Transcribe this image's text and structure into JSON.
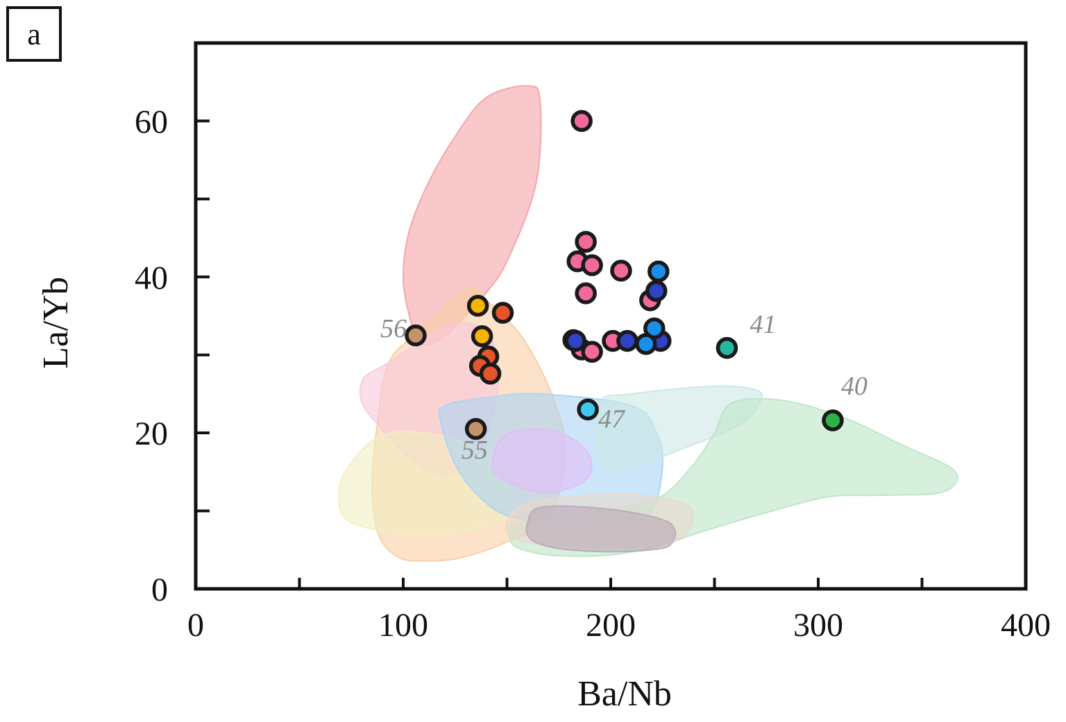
{
  "panel_label": "a",
  "chart_data": {
    "type": "scatter",
    "title": "",
    "xlabel": "Ba/Nb",
    "ylabel": "La/Yb",
    "xlim": [
      0,
      400
    ],
    "ylim": [
      0,
      70
    ],
    "xticks": [
      0,
      100,
      200,
      300,
      400
    ],
    "yticks": [
      0,
      20,
      40,
      60
    ],
    "x_minor_ticks": [
      50,
      150,
      250,
      350
    ],
    "y_minor_ticks": [
      10,
      30,
      50
    ],
    "grid": false,
    "fields": [
      {
        "name": "red-field",
        "color": "#f4a3a6",
        "points": [
          [
            100,
            40
          ],
          [
            103,
            46
          ],
          [
            112,
            52
          ],
          [
            125,
            58
          ],
          [
            140,
            63
          ],
          [
            160,
            64.5
          ],
          [
            166,
            62.5
          ],
          [
            164,
            52
          ],
          [
            150,
            42
          ],
          [
            140,
            38
          ],
          [
            130,
            35
          ],
          [
            118,
            32
          ],
          [
            108,
            31.5
          ],
          [
            103,
            35
          ]
        ]
      },
      {
        "name": "orange-field",
        "color": "#f8cfa5",
        "points": [
          [
            130,
            38.5
          ],
          [
            140,
            37
          ],
          [
            158,
            32
          ],
          [
            173,
            24
          ],
          [
            178,
            17
          ],
          [
            170,
            9
          ],
          [
            150,
            6
          ],
          [
            128,
            4
          ],
          [
            112,
            3.6
          ],
          [
            98,
            4
          ],
          [
            88,
            7
          ],
          [
            85,
            13
          ],
          [
            87,
            20
          ],
          [
            93,
            29
          ],
          [
            110,
            33.5
          ]
        ]
      },
      {
        "name": "pink-field",
        "color": "#f8c8dc",
        "points": [
          [
            93,
            29
          ],
          [
            110,
            32
          ],
          [
            125,
            34
          ],
          [
            140,
            33
          ],
          [
            146,
            27
          ],
          [
            138,
            18
          ],
          [
            126,
            15
          ],
          [
            117,
            14.5
          ],
          [
            102,
            17
          ],
          [
            88,
            21
          ],
          [
            80,
            24
          ],
          [
            81,
            27
          ]
        ]
      },
      {
        "name": "yellow-field",
        "color": "#f1efc0",
        "points": [
          [
            88,
            19.5
          ],
          [
            110,
            20
          ],
          [
            132,
            18.5
          ],
          [
            145,
            16
          ],
          [
            152,
            12
          ],
          [
            148,
            9
          ],
          [
            122,
            7
          ],
          [
            96,
            7.2
          ],
          [
            75,
            8.5
          ],
          [
            69,
            11
          ],
          [
            72,
            15
          ]
        ]
      },
      {
        "name": "blue-field",
        "color": "#abd4f4",
        "points": [
          [
            118,
            21.5
          ],
          [
            120,
            23.5
          ],
          [
            140,
            24.5
          ],
          [
            165,
            25
          ],
          [
            210,
            23.5
          ],
          [
            222,
            20
          ],
          [
            225,
            16
          ],
          [
            220,
            10
          ],
          [
            206,
            8.5
          ],
          [
            180,
            8.5
          ],
          [
            155,
            9
          ],
          [
            140,
            11
          ],
          [
            126,
            15.5
          ]
        ]
      },
      {
        "name": "teal-field",
        "color": "#cbe7e4",
        "points": [
          [
            195,
            24
          ],
          [
            210,
            25
          ],
          [
            250,
            26
          ],
          [
            270,
            25.5
          ],
          [
            272,
            24
          ],
          [
            262,
            21
          ],
          [
            235,
            18
          ],
          [
            215,
            16
          ],
          [
            200,
            15
          ],
          [
            193,
            18
          ]
        ]
      },
      {
        "name": "green-field",
        "color": "#bde6c6",
        "points": [
          [
            258,
            23.8
          ],
          [
            282,
            24.2
          ],
          [
            312,
            22
          ],
          [
            340,
            18.5
          ],
          [
            364,
            15.5
          ],
          [
            366,
            13.5
          ],
          [
            356,
            12.2
          ],
          [
            328,
            12
          ],
          [
            305,
            11.8
          ],
          [
            278,
            10
          ],
          [
            246,
            7.5
          ],
          [
            222,
            5.4
          ],
          [
            198,
            4.3
          ],
          [
            172,
            4.3
          ],
          [
            158,
            5
          ],
          [
            152,
            6
          ],
          [
            153,
            8.2
          ],
          [
            175,
            9
          ],
          [
            205,
            10.5
          ],
          [
            225,
            12
          ],
          [
            240,
            16
          ],
          [
            250,
            20
          ]
        ]
      },
      {
        "name": "tan-field",
        "color": "#e8d8cd",
        "points": [
          [
            160,
            11
          ],
          [
            190,
            12
          ],
          [
            215,
            12
          ],
          [
            238,
            10.5
          ],
          [
            236,
            7
          ],
          [
            220,
            5.5
          ],
          [
            196,
            5.3
          ],
          [
            170,
            5.6
          ],
          [
            153,
            6.5
          ],
          [
            150,
            8.5
          ]
        ]
      },
      {
        "name": "grey-field",
        "color": "#b9a9b9",
        "points": [
          [
            167,
            10.5
          ],
          [
            200,
            10.2
          ],
          [
            228,
            8.5
          ],
          [
            229,
            5.7
          ],
          [
            215,
            4.9
          ],
          [
            192,
            4.8
          ],
          [
            172,
            5.3
          ],
          [
            161,
            6.5
          ],
          [
            160,
            8.5
          ]
        ]
      },
      {
        "name": "violet-field",
        "color": "#e2bdf8",
        "points": [
          [
            148,
            19.5
          ],
          [
            165,
            20.5
          ],
          [
            180,
            19.5
          ],
          [
            190,
            17
          ],
          [
            188,
            14
          ],
          [
            170,
            12.3
          ],
          [
            152,
            13.5
          ],
          [
            143,
            15.5
          ]
        ]
      }
    ],
    "series": [
      {
        "name": "pink",
        "color": "#f26a9b",
        "points": [
          [
            186,
            60
          ],
          [
            188,
            44.5
          ],
          [
            184,
            42
          ],
          [
            191,
            41.5
          ],
          [
            205,
            40.8
          ],
          [
            188,
            37.9
          ],
          [
            219,
            37
          ],
          [
            186,
            30.7
          ],
          [
            191,
            30.4
          ],
          [
            201,
            31.8
          ],
          [
            182,
            31.9
          ]
        ]
      },
      {
        "name": "dark-blue",
        "color": "#2f43c8",
        "points": [
          [
            222,
            38.2
          ],
          [
            183,
            31.8
          ],
          [
            208,
            31.8
          ],
          [
            224,
            31.8
          ]
        ]
      },
      {
        "name": "light-blue",
        "color": "#1b8ee8",
        "points": [
          [
            223,
            40.7
          ],
          [
            221,
            33.4
          ],
          [
            217,
            31.4
          ]
        ]
      },
      {
        "name": "yellow",
        "color": "#f5b400",
        "points": [
          [
            136,
            36.3
          ],
          [
            138,
            32.4
          ]
        ]
      },
      {
        "name": "red-orange",
        "color": "#e8542a",
        "points": [
          [
            148,
            35.4
          ],
          [
            141,
            29.8
          ],
          [
            137,
            28.6
          ],
          [
            142,
            27.6
          ]
        ]
      },
      {
        "name": "brown",
        "color": "#c4936b",
        "points": [
          [
            106,
            32.5
          ],
          [
            135,
            20.5
          ]
        ]
      },
      {
        "name": "teal",
        "color": "#24b7a2",
        "points": [
          [
            256,
            30.9
          ]
        ]
      },
      {
        "name": "cyan",
        "color": "#3fc6ee",
        "points": [
          [
            189,
            23
          ]
        ]
      },
      {
        "name": "green",
        "color": "#2cb24a",
        "points": [
          [
            307,
            21.6
          ]
        ]
      }
    ],
    "annotations": [
      {
        "text": "56",
        "x": 89,
        "y": 32.3
      },
      {
        "text": "41",
        "x": 267,
        "y": 32.8
      },
      {
        "text": "40",
        "x": 311,
        "y": 24.9
      },
      {
        "text": "47",
        "x": 194,
        "y": 20.7
      },
      {
        "text": "55",
        "x": 128,
        "y": 16.7
      }
    ]
  }
}
